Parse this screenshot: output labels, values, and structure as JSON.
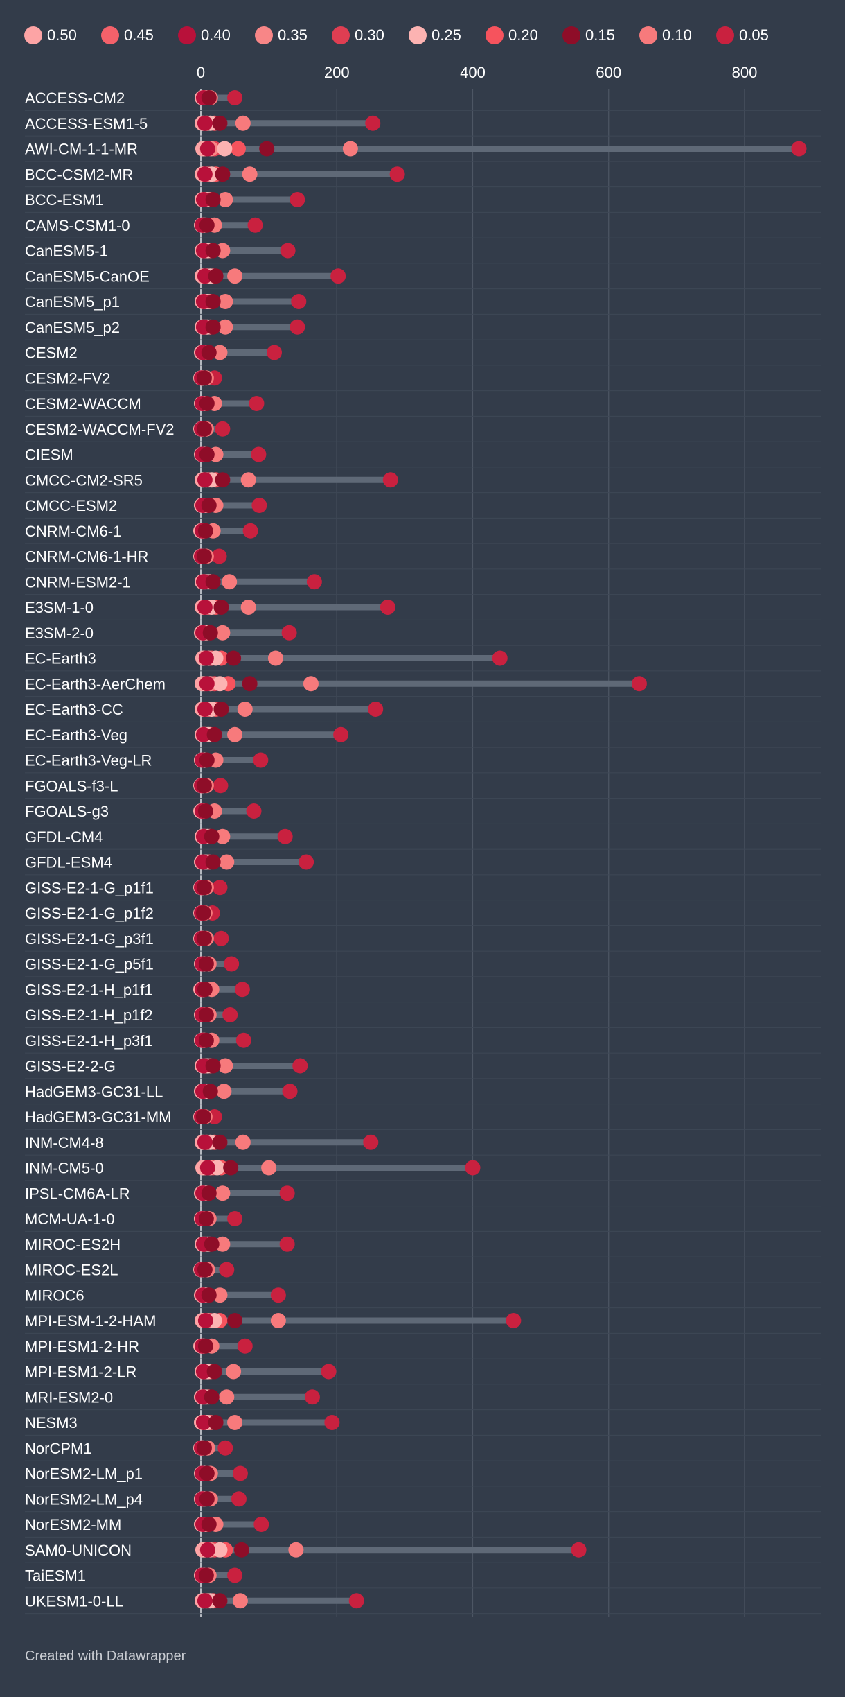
{
  "chart_data": {
    "type": "dot-range",
    "title": "",
    "xlabel": "",
    "ylabel": "",
    "xlim": [
      0,
      900
    ],
    "x_ticks": [
      0,
      200,
      400,
      600,
      800
    ],
    "legend_position": "top",
    "legend": [
      {
        "label": "0.50",
        "color": "#fda4a5"
      },
      {
        "label": "0.45",
        "color": "#f4616a"
      },
      {
        "label": "0.40",
        "color": "#b8113a"
      },
      {
        "label": "0.35",
        "color": "#f88687"
      },
      {
        "label": "0.30",
        "color": "#df3e52"
      },
      {
        "label": "0.25",
        "color": "#fcb3b2"
      },
      {
        "label": "0.20",
        "color": "#f6535d"
      },
      {
        "label": "0.15",
        "color": "#8e0d28"
      },
      {
        "label": "0.10",
        "color": "#f77a7c"
      },
      {
        "label": "0.05",
        "color": "#c9213f"
      }
    ],
    "series_keys": [
      "0.50",
      "0.45",
      "0.40",
      "0.35",
      "0.30",
      "0.25",
      "0.20",
      "0.15",
      "0.10",
      "0.05"
    ],
    "models": [
      {
        "name": "ACCESS-CM2",
        "values": [
          2,
          3,
          4,
          5,
          6,
          8,
          10,
          12,
          14,
          50
        ]
      },
      {
        "name": "ACCESS-ESM1-5",
        "values": [
          2,
          4,
          6,
          8,
          10,
          14,
          20,
          28,
          62,
          253
        ]
      },
      {
        "name": "AWI-CM-1-1-MR",
        "values": [
          3,
          6,
          10,
          15,
          20,
          35,
          55,
          97,
          220,
          880
        ]
      },
      {
        "name": "BCC-CSM2-MR",
        "values": [
          2,
          4,
          6,
          8,
          12,
          16,
          22,
          32,
          72,
          289
        ]
      },
      {
        "name": "BCC-ESM1",
        "values": [
          2,
          3,
          4,
          5,
          7,
          10,
          14,
          18,
          36,
          142
        ]
      },
      {
        "name": "CAMS-CSM1-0",
        "values": [
          1,
          2,
          2,
          3,
          4,
          5,
          7,
          9,
          20,
          80
        ]
      },
      {
        "name": "CanESM5-1",
        "values": [
          2,
          3,
          4,
          5,
          7,
          10,
          14,
          18,
          32,
          128
        ]
      },
      {
        "name": "CanESM5-CanOE",
        "values": [
          2,
          4,
          6,
          8,
          10,
          14,
          18,
          22,
          50,
          202
        ]
      },
      {
        "name": "CanESM5_p1",
        "values": [
          2,
          3,
          4,
          6,
          8,
          10,
          14,
          18,
          36,
          144
        ]
      },
      {
        "name": "CanESM5_p2",
        "values": [
          2,
          3,
          4,
          6,
          8,
          10,
          14,
          18,
          36,
          142
        ]
      },
      {
        "name": "CESM2",
        "values": [
          1,
          2,
          3,
          4,
          5,
          7,
          9,
          12,
          28,
          108
        ]
      },
      {
        "name": "CESM2-FV2",
        "values": [
          0,
          1,
          1,
          2,
          2,
          3,
          4,
          5,
          8,
          20
        ]
      },
      {
        "name": "CESM2-WACCM",
        "values": [
          1,
          2,
          2,
          3,
          4,
          5,
          7,
          9,
          20,
          82
        ]
      },
      {
        "name": "CESM2-WACCM-FV2",
        "values": [
          0,
          1,
          1,
          2,
          2,
          3,
          4,
          5,
          8,
          32
        ]
      },
      {
        "name": "CIESM",
        "values": [
          1,
          2,
          2,
          3,
          4,
          5,
          7,
          9,
          22,
          85
        ]
      },
      {
        "name": "CMCC-CM2-SR5",
        "values": [
          2,
          4,
          6,
          8,
          12,
          16,
          22,
          32,
          70,
          279
        ]
      },
      {
        "name": "CMCC-ESM2",
        "values": [
          1,
          2,
          3,
          4,
          5,
          7,
          9,
          12,
          22,
          86
        ]
      },
      {
        "name": "CNRM-CM6-1",
        "values": [
          0,
          1,
          2,
          2,
          3,
          4,
          5,
          7,
          18,
          73
        ]
      },
      {
        "name": "CNRM-CM6-1-HR",
        "values": [
          0,
          1,
          1,
          2,
          2,
          3,
          4,
          5,
          8,
          27
        ]
      },
      {
        "name": "CNRM-ESM2-1",
        "values": [
          2,
          3,
          4,
          6,
          8,
          11,
          14,
          18,
          42,
          167
        ]
      },
      {
        "name": "E3SM-1-0",
        "values": [
          2,
          4,
          6,
          8,
          12,
          16,
          22,
          30,
          70,
          275
        ]
      },
      {
        "name": "E3SM-2-0",
        "values": [
          1,
          2,
          3,
          4,
          5,
          7,
          9,
          14,
          32,
          130
        ]
      },
      {
        "name": "EC-Earth3",
        "values": [
          3,
          5,
          8,
          12,
          16,
          22,
          30,
          48,
          110,
          440
        ]
      },
      {
        "name": "EC-Earth3-AerChem",
        "values": [
          2,
          5,
          9,
          14,
          20,
          28,
          40,
          72,
          162,
          645
        ]
      },
      {
        "name": "EC-Earth3-CC",
        "values": [
          2,
          4,
          6,
          8,
          12,
          16,
          22,
          30,
          65,
          257
        ]
      },
      {
        "name": "EC-Earth3-Veg",
        "values": [
          2,
          3,
          4,
          6,
          8,
          11,
          14,
          20,
          50,
          206
        ]
      },
      {
        "name": "EC-Earth3-Veg-LR",
        "values": [
          1,
          2,
          2,
          3,
          4,
          5,
          7,
          9,
          22,
          88
        ]
      },
      {
        "name": "FGOALS-f3-L",
        "values": [
          0,
          1,
          1,
          2,
          2,
          3,
          4,
          5,
          8,
          29
        ]
      },
      {
        "name": "FGOALS-g3",
        "values": [
          0,
          1,
          2,
          2,
          3,
          4,
          5,
          7,
          20,
          78
        ]
      },
      {
        "name": "GFDL-CM4",
        "values": [
          2,
          3,
          4,
          5,
          7,
          10,
          13,
          16,
          32,
          124
        ]
      },
      {
        "name": "GFDL-ESM4",
        "values": [
          1,
          2,
          3,
          4,
          5,
          8,
          12,
          18,
          38,
          155
        ]
      },
      {
        "name": "GISS-E2-1-G_p1f1",
        "values": [
          0,
          1,
          1,
          2,
          2,
          3,
          4,
          5,
          8,
          28
        ]
      },
      {
        "name": "GISS-E2-1-G_p1f2",
        "values": [
          0,
          1,
          1,
          1,
          2,
          2,
          3,
          4,
          6,
          17
        ]
      },
      {
        "name": "GISS-E2-1-G_p3f1",
        "values": [
          0,
          1,
          1,
          2,
          2,
          3,
          4,
          5,
          8,
          30
        ]
      },
      {
        "name": "GISS-E2-1-G_p5f1",
        "values": [
          1,
          2,
          2,
          3,
          4,
          5,
          6,
          8,
          12,
          45
        ]
      },
      {
        "name": "GISS-E2-1-H_p1f1",
        "values": [
          0,
          1,
          2,
          2,
          3,
          4,
          5,
          6,
          16,
          61
        ]
      },
      {
        "name": "GISS-E2-1-H_p1f2",
        "values": [
          1,
          2,
          2,
          3,
          4,
          5,
          6,
          8,
          12,
          43
        ]
      },
      {
        "name": "GISS-E2-1-H_p3f1",
        "values": [
          1,
          2,
          2,
          3,
          4,
          5,
          6,
          8,
          16,
          63
        ]
      },
      {
        "name": "GISS-E2-2-G",
        "values": [
          2,
          3,
          4,
          5,
          7,
          10,
          14,
          18,
          36,
          146
        ]
      },
      {
        "name": "HadGEM3-GC31-LL",
        "values": [
          1,
          2,
          3,
          4,
          6,
          8,
          11,
          14,
          34,
          131
        ]
      },
      {
        "name": "HadGEM3-GC31-MM",
        "values": [
          0,
          1,
          1,
          1,
          2,
          2,
          3,
          4,
          6,
          20
        ]
      },
      {
        "name": "INM-CM4-8",
        "values": [
          2,
          4,
          6,
          8,
          10,
          14,
          20,
          28,
          62,
          250
        ]
      },
      {
        "name": "INM-CM5-0",
        "values": [
          3,
          6,
          10,
          14,
          18,
          24,
          30,
          44,
          100,
          400
        ]
      },
      {
        "name": "IPSL-CM6A-LR",
        "values": [
          1,
          2,
          3,
          4,
          5,
          7,
          9,
          12,
          32,
          127
        ]
      },
      {
        "name": "MCM-UA-1-0",
        "values": [
          1,
          1,
          2,
          2,
          3,
          4,
          6,
          8,
          12,
          50
        ]
      },
      {
        "name": "MIROC-ES2H",
        "values": [
          2,
          3,
          4,
          5,
          7,
          10,
          13,
          16,
          32,
          127
        ]
      },
      {
        "name": "MIROC-ES2L",
        "values": [
          0,
          1,
          1,
          2,
          3,
          4,
          5,
          6,
          10,
          38
        ]
      },
      {
        "name": "MIROC6",
        "values": [
          1,
          2,
          3,
          4,
          5,
          7,
          9,
          12,
          28,
          114
        ]
      },
      {
        "name": "MPI-ESM-1-2-HAM",
        "values": [
          2,
          4,
          7,
          10,
          14,
          20,
          28,
          50,
          114,
          460
        ]
      },
      {
        "name": "MPI-ESM1-2-HR",
        "values": [
          0,
          1,
          2,
          2,
          3,
          4,
          5,
          7,
          16,
          65
        ]
      },
      {
        "name": "MPI-ESM1-2-LR",
        "values": [
          2,
          3,
          4,
          5,
          7,
          10,
          14,
          20,
          48,
          188
        ]
      },
      {
        "name": "MRI-ESM2-0",
        "values": [
          1,
          2,
          3,
          4,
          6,
          8,
          11,
          16,
          38,
          164
        ]
      },
      {
        "name": "NESM3",
        "values": [
          1,
          2,
          4,
          6,
          8,
          10,
          14,
          22,
          50,
          193
        ]
      },
      {
        "name": "NorCPM1",
        "values": [
          0,
          1,
          1,
          2,
          2,
          3,
          4,
          5,
          10,
          36
        ]
      },
      {
        "name": "NorESM2-LM_p1",
        "values": [
          1,
          2,
          2,
          3,
          4,
          5,
          7,
          9,
          14,
          58
        ]
      },
      {
        "name": "NorESM2-LM_p4",
        "values": [
          1,
          2,
          2,
          3,
          4,
          5,
          7,
          9,
          14,
          56
        ]
      },
      {
        "name": "NorESM2-MM",
        "values": [
          1,
          2,
          3,
          4,
          5,
          7,
          9,
          12,
          22,
          89
        ]
      },
      {
        "name": "SAM0-UNICON",
        "values": [
          3,
          6,
          10,
          14,
          20,
          28,
          36,
          60,
          140,
          556
        ]
      },
      {
        "name": "TaiESM1",
        "values": [
          1,
          1,
          2,
          2,
          3,
          4,
          6,
          8,
          12,
          50
        ]
      },
      {
        "name": "UKESM1-0-LL",
        "values": [
          2,
          4,
          6,
          8,
          11,
          14,
          18,
          28,
          58,
          229
        ]
      }
    ]
  },
  "footer": {
    "credit": "Created with Datawrapper"
  }
}
